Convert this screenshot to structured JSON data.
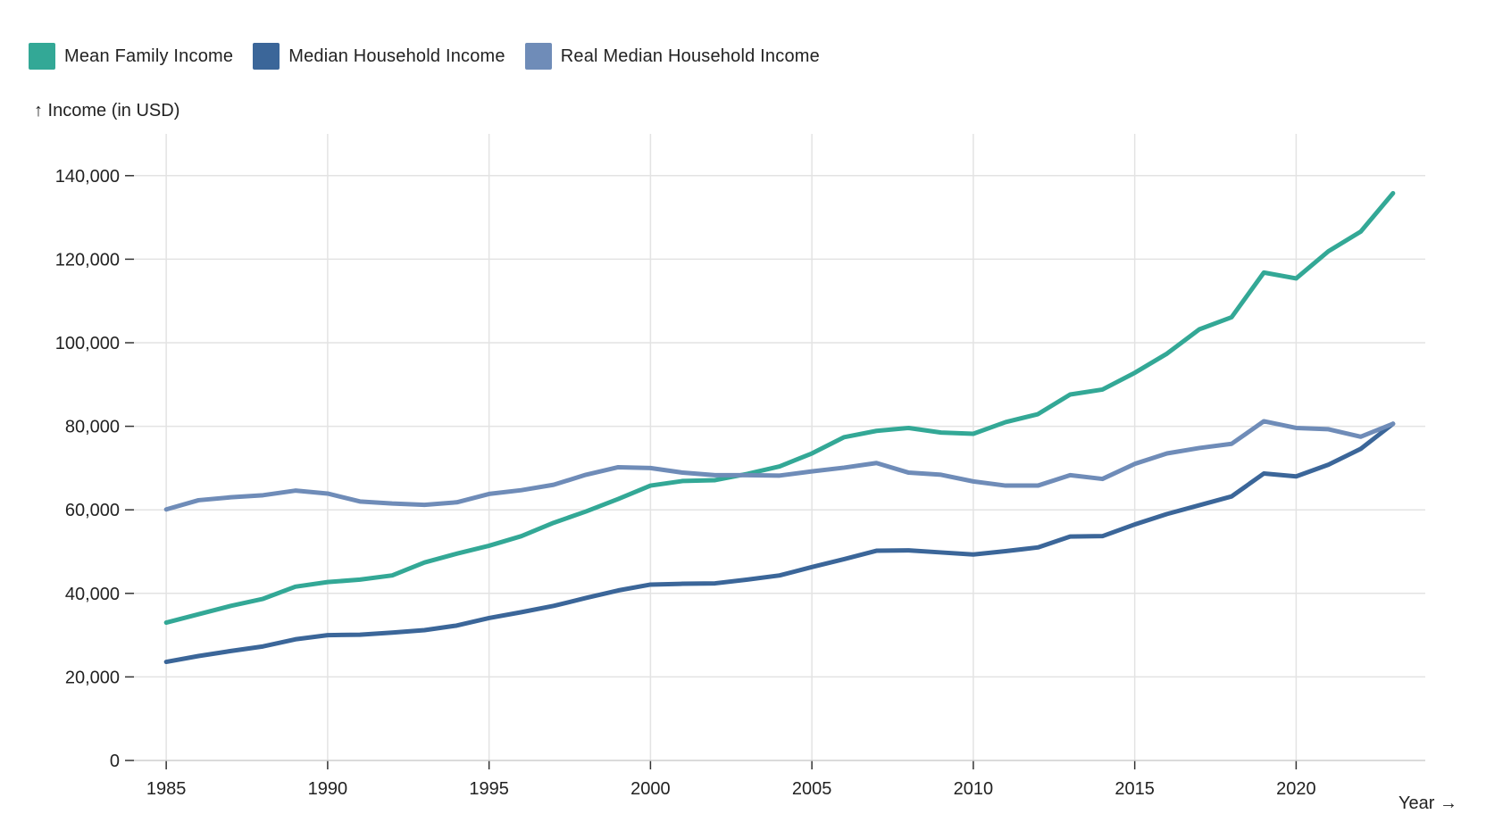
{
  "chart_data": {
    "type": "line",
    "title": "",
    "xlabel": "Year →",
    "ylabel": "↑ Income (in USD)",
    "xlim": [
      1985,
      2023
    ],
    "ylim": [
      0,
      150000
    ],
    "x_ticks": [
      "1985",
      "1990",
      "1995",
      "2000",
      "2005",
      "2010",
      "2015",
      "2020"
    ],
    "y_ticks": [
      "0",
      "20,000",
      "40,000",
      "60,000",
      "80,000",
      "100,000",
      "120,000",
      "140,000"
    ],
    "grid": true,
    "legend_position": "top-left",
    "x": [
      1985,
      1986,
      1987,
      1988,
      1989,
      1990,
      1991,
      1992,
      1993,
      1994,
      1995,
      1996,
      1997,
      1998,
      1999,
      2000,
      2001,
      2002,
      2003,
      2004,
      2005,
      2006,
      2007,
      2008,
      2009,
      2010,
      2011,
      2012,
      2013,
      2014,
      2015,
      2016,
      2017,
      2018,
      2019,
      2020,
      2021,
      2022,
      2023
    ],
    "series": [
      {
        "name": "Mean Family Income",
        "color": "#33a896",
        "values": [
          33000,
          35000,
          37000,
          38700,
          41600,
          42700,
          43300,
          44300,
          47400,
          49500,
          51400,
          53700,
          56900,
          59600,
          62600,
          65800,
          66900,
          67100,
          68600,
          70400,
          73500,
          77400,
          78900,
          79600,
          78500,
          78200,
          81000,
          82900,
          87600,
          88800,
          92800,
          97400,
          103200,
          106100,
          116800,
          115400,
          121900,
          126600,
          135800
        ]
      },
      {
        "name": "Median Household Income",
        "color": "#3b6699",
        "values": [
          23600,
          25000,
          26200,
          27300,
          29000,
          30000,
          30100,
          30600,
          31200,
          32300,
          34100,
          35500,
          37000,
          38900,
          40700,
          42100,
          42300,
          42400,
          43300,
          44300,
          46300,
          48200,
          50200,
          50300,
          49800,
          49300,
          50100,
          51000,
          53600,
          53700,
          56500,
          59000,
          61100,
          63200,
          68700,
          68000,
          70800,
          74600,
          80600
        ]
      },
      {
        "name": "Real Median Household Income",
        "color": "#6f8cb8",
        "values": [
          60100,
          62300,
          63000,
          63500,
          64600,
          63900,
          62000,
          61500,
          61200,
          61800,
          63800,
          64700,
          66000,
          68400,
          70200,
          70000,
          68900,
          68300,
          68300,
          68200,
          69200,
          70100,
          71200,
          68900,
          68400,
          66800,
          65800,
          65800,
          68300,
          67400,
          71000,
          73500,
          74800,
          75800,
          81200,
          79600,
          79300,
          77500,
          80600
        ]
      }
    ]
  }
}
